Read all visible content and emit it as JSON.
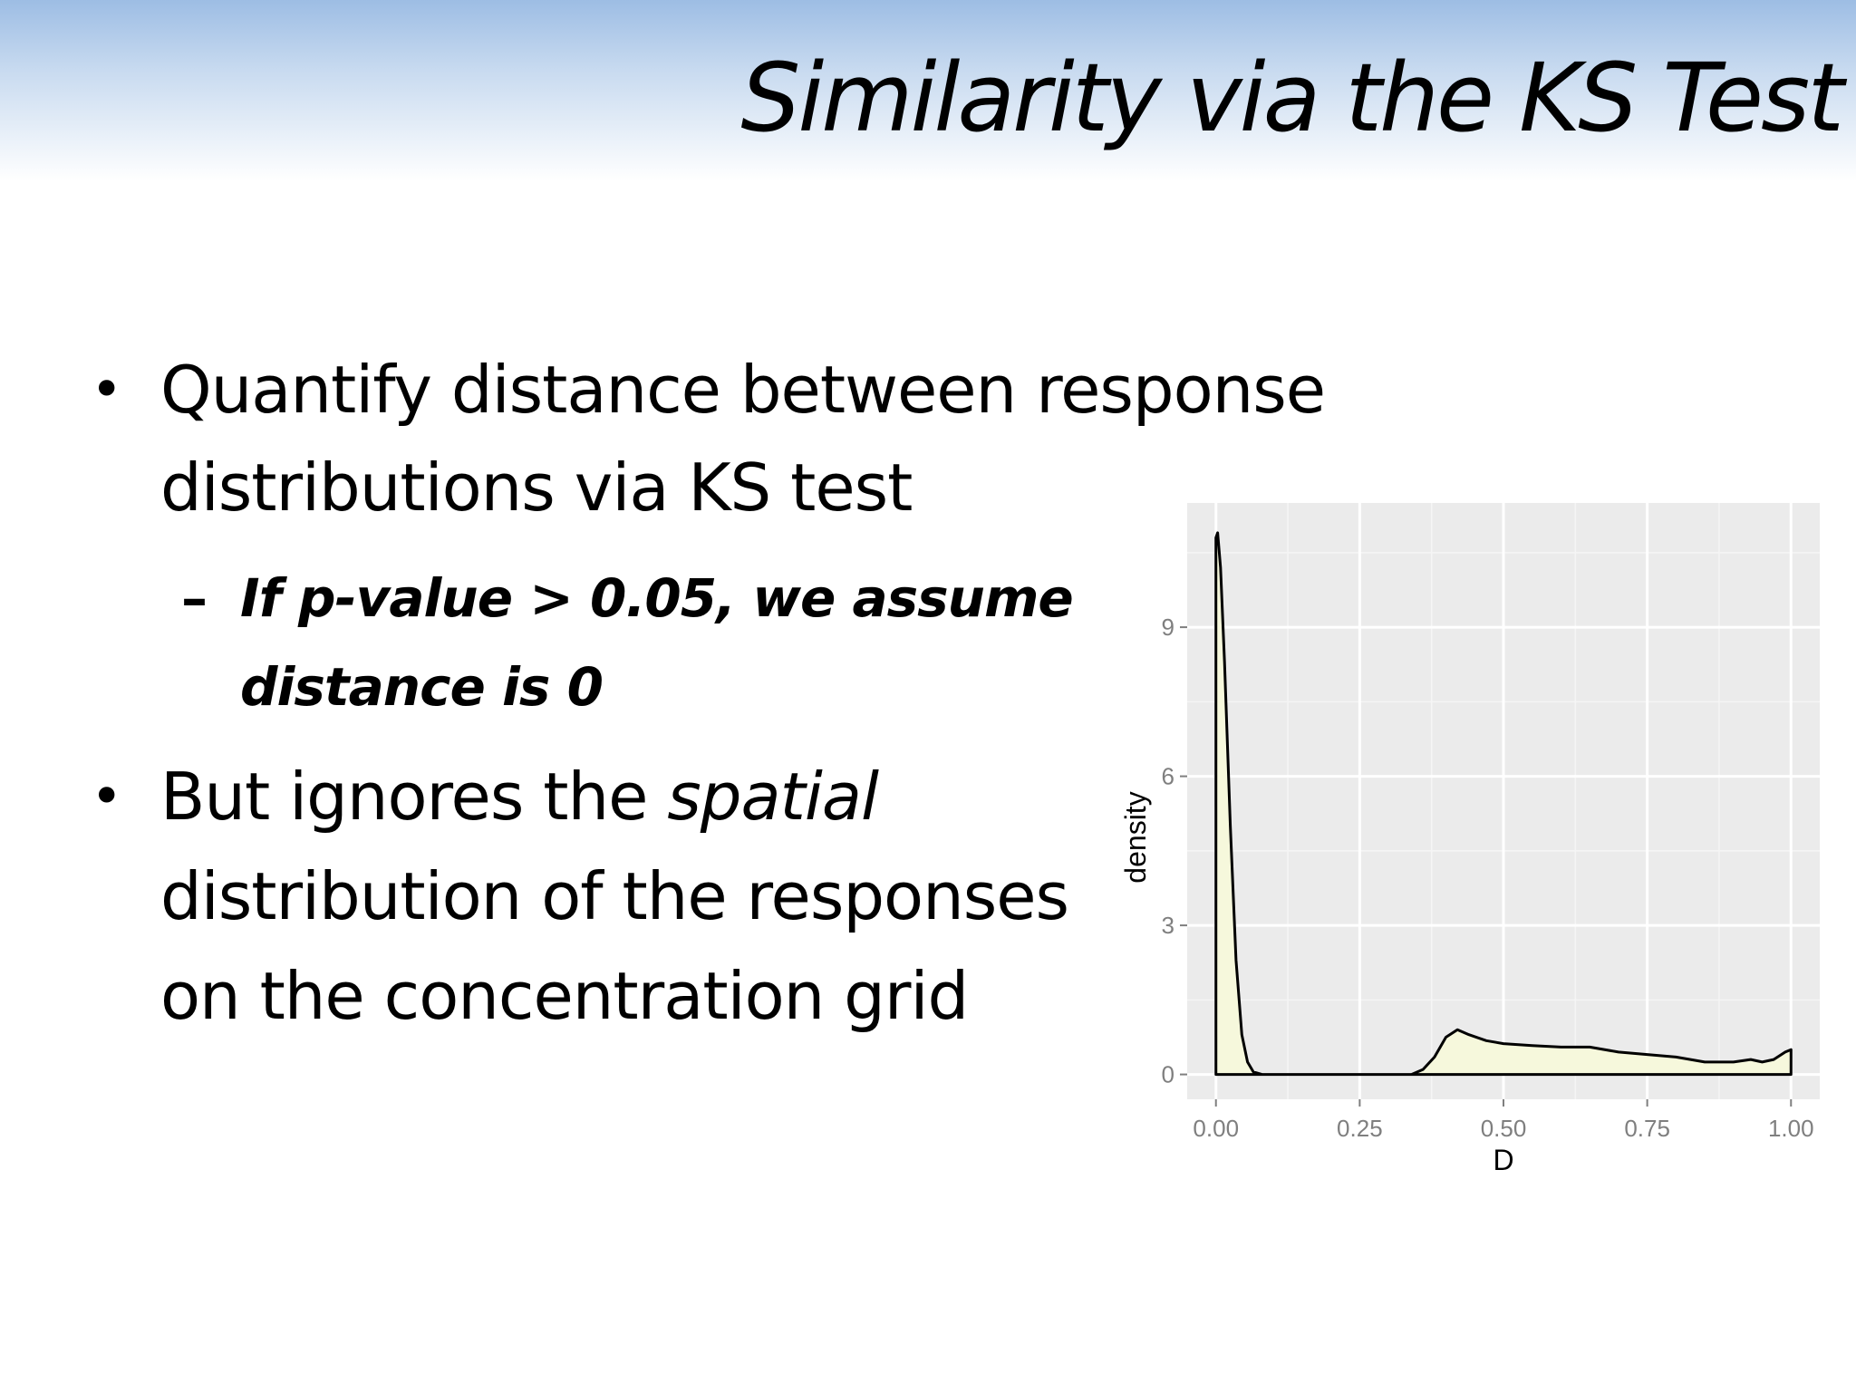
{
  "slide": {
    "title": "Similarity via the KS Test",
    "bullets": [
      {
        "lines": [
          "Quantify distance between response",
          "distributions via KS test"
        ]
      },
      {
        "line1_prefix": "But ignores the ",
        "line1_emph": "spatial",
        "line2": "distribution of the responses",
        "line3": "on the concentration grid"
      }
    ],
    "subbullet": {
      "dash": "–",
      "lines": [
        "If p-value > 0.05, we assume",
        "distance is 0"
      ]
    },
    "bullet_glyph": "•"
  },
  "chart_data": {
    "type": "area",
    "xlabel": "D",
    "ylabel": "density",
    "xlim": [
      -0.05,
      1.05
    ],
    "ylim": [
      -0.5,
      11.5
    ],
    "xticks": [
      0.0,
      0.25,
      0.5,
      0.75,
      1.0
    ],
    "xtick_labels": [
      "0.00",
      "0.25",
      "0.50",
      "0.75",
      "1.00"
    ],
    "yticks": [
      0,
      3,
      6,
      9
    ],
    "ytick_labels": [
      "0",
      "3",
      "6",
      "9"
    ],
    "grid": true,
    "colors": {
      "panel": "#ebebeb",
      "grid": "#ffffff",
      "fill": "#f6f8dc",
      "line": "#000000"
    },
    "x": [
      0.0,
      0.003,
      0.008,
      0.015,
      0.025,
      0.035,
      0.045,
      0.055,
      0.065,
      0.08,
      0.1,
      0.2,
      0.3,
      0.34,
      0.36,
      0.38,
      0.4,
      0.42,
      0.44,
      0.47,
      0.5,
      0.55,
      0.6,
      0.65,
      0.7,
      0.75,
      0.8,
      0.85,
      0.9,
      0.93,
      0.95,
      0.97,
      0.99,
      1.0
    ],
    "y": [
      10.8,
      10.9,
      10.2,
      8.3,
      5.0,
      2.3,
      0.8,
      0.25,
      0.05,
      0.0,
      0.0,
      0.0,
      0.0,
      0.0,
      0.1,
      0.35,
      0.75,
      0.9,
      0.8,
      0.68,
      0.62,
      0.58,
      0.55,
      0.55,
      0.45,
      0.4,
      0.35,
      0.25,
      0.25,
      0.3,
      0.25,
      0.3,
      0.45,
      0.5
    ]
  }
}
